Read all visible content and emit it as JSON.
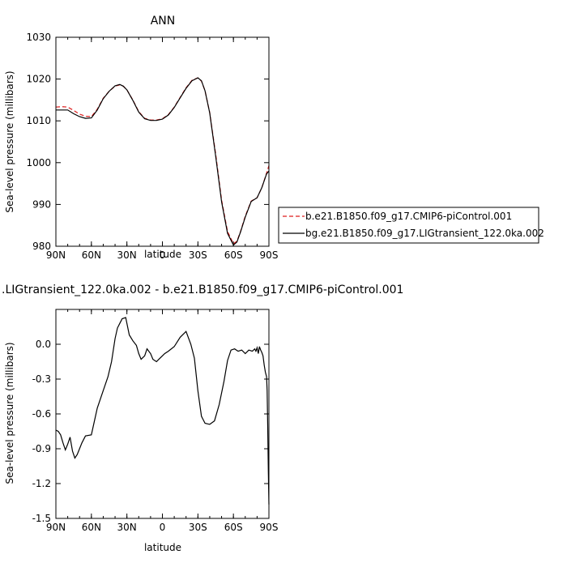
{
  "chart_data": [
    {
      "type": "line",
      "title": "ANN",
      "xlabel": "",
      "ylabel": "Sea-level pressure (millibars)",
      "xlim": [
        90,
        -90
      ],
      "ylim": [
        980,
        1030
      ],
      "x_ticks": [
        {
          "value": 90,
          "label": "90N"
        },
        {
          "value": 60,
          "label": "60N"
        },
        {
          "value": 30,
          "label": "30N"
        },
        {
          "value": 0,
          "label": "0"
        },
        {
          "value": -30,
          "label": "30S"
        },
        {
          "value": -60,
          "label": "60S"
        },
        {
          "value": -90,
          "label": "90S"
        }
      ],
      "y_ticks": [
        980,
        990,
        1000,
        1010,
        1020,
        1030
      ],
      "legend": "right",
      "series": [
        {
          "name": "b.e21.B1850.f09_g17.CMIP6-piControl.001",
          "color": "#dd1c1c",
          "dash": "dashed",
          "x": [
            90,
            85,
            80,
            75,
            70,
            65,
            60,
            55,
            50,
            45,
            40,
            36,
            33,
            30,
            25,
            20,
            15,
            10,
            5,
            0,
            -5,
            -10,
            -15,
            -20,
            -25,
            -30,
            -33,
            -36,
            -40,
            -45,
            -50,
            -55,
            -60,
            -63,
            -66,
            -70,
            -75,
            -80,
            -84,
            -88,
            -90
          ],
          "y": [
            1013.3,
            1013.4,
            1013.3,
            1012.5,
            1011.6,
            1011.1,
            1011.0,
            1012.8,
            1015.4,
            1017.1,
            1018.3,
            1018.6,
            1018.3,
            1017.4,
            1015.0,
            1012.2,
            1010.6,
            1010.2,
            1010.2,
            1010.5,
            1011.5,
            1013.3,
            1015.6,
            1017.9,
            1019.7,
            1020.3,
            1019.5,
            1017.2,
            1012.0,
            1002.0,
            991.0,
            983.5,
            980.6,
            981.2,
            983.5,
            987.2,
            990.8,
            991.6,
            994.0,
            997.5,
            999.3
          ]
        },
        {
          "name": "bg.e21.B1850.f09_g17.LIGtransient_122.0ka.002",
          "color": "#000000",
          "dash": "solid",
          "x": [
            90,
            85,
            80,
            75,
            70,
            65,
            60,
            55,
            50,
            45,
            40,
            36,
            33,
            30,
            25,
            20,
            15,
            10,
            5,
            0,
            -5,
            -10,
            -15,
            -20,
            -25,
            -30,
            -33,
            -36,
            -40,
            -45,
            -50,
            -55,
            -60,
            -63,
            -66,
            -70,
            -75,
            -80,
            -84,
            -88,
            -90
          ],
          "y": [
            1012.6,
            1012.6,
            1012.6,
            1011.7,
            1011.0,
            1010.6,
            1010.7,
            1012.6,
            1015.3,
            1017.1,
            1018.4,
            1018.7,
            1018.3,
            1017.4,
            1014.9,
            1012.1,
            1010.5,
            1010.1,
            1010.1,
            1010.4,
            1011.4,
            1013.2,
            1015.5,
            1017.8,
            1019.6,
            1020.3,
            1019.6,
            1017.2,
            1011.9,
            1001.5,
            990.6,
            983.1,
            980.3,
            981.0,
            983.4,
            987.0,
            990.7,
            991.6,
            994.0,
            997.3,
            998.0
          ]
        }
      ]
    },
    {
      "type": "line",
      "title": ".LIGtransient_122.0ka.002 - b.e21.B1850.f09_g17.CMIP6-piControl.001",
      "xlabel": "latitude",
      "ylabel": "Sea-level pressure (millibars)",
      "xlim": [
        90,
        -90
      ],
      "ylim": [
        -1.5,
        0.3
      ],
      "x_ticks": [
        {
          "value": 90,
          "label": "90N"
        },
        {
          "value": 60,
          "label": "60N"
        },
        {
          "value": 30,
          "label": "30N"
        },
        {
          "value": 0,
          "label": "0"
        },
        {
          "value": -30,
          "label": "30S"
        },
        {
          "value": -60,
          "label": "60S"
        },
        {
          "value": -90,
          "label": "90S"
        }
      ],
      "y_ticks": [
        {
          "value": -1.5,
          "label": "-1.5"
        },
        {
          "value": -1.2,
          "label": "-1.2"
        },
        {
          "value": -0.9,
          "label": "-0.9"
        },
        {
          "value": -0.6,
          "label": "-0.6"
        },
        {
          "value": -0.3,
          "label": "-0.3"
        },
        {
          "value": 0.0,
          "label": "0.0"
        }
      ],
      "series": [
        {
          "color": "#000000",
          "x": [
            90,
            88,
            86,
            84,
            82,
            80,
            78,
            76,
            74,
            72,
            70,
            68,
            65,
            60,
            55,
            50,
            46,
            43,
            40,
            38,
            36,
            35,
            34,
            31,
            28,
            25,
            22,
            20,
            18,
            15,
            13,
            10,
            8,
            5,
            3,
            0,
            -2,
            -5,
            -10,
            -15,
            -20,
            -24,
            -27,
            -30,
            -33,
            -36,
            -40,
            -44,
            -48,
            -52,
            -55,
            -58,
            -61,
            -64,
            -67,
            -70,
            -73,
            -76,
            -78,
            -79,
            -80,
            -81,
            -82,
            -83,
            -84,
            -85,
            -86,
            -87,
            -88,
            -88.5,
            -89,
            -89.5,
            -90
          ],
          "y": [
            -0.74,
            -0.75,
            -0.78,
            -0.85,
            -0.91,
            -0.86,
            -0.8,
            -0.92,
            -0.98,
            -0.95,
            -0.9,
            -0.85,
            -0.79,
            -0.78,
            -0.55,
            -0.4,
            -0.28,
            -0.15,
            0.05,
            0.14,
            0.18,
            0.2,
            0.22,
            0.23,
            0.08,
            0.03,
            -0.01,
            -0.08,
            -0.13,
            -0.1,
            -0.04,
            -0.08,
            -0.13,
            -0.15,
            -0.13,
            -0.1,
            -0.08,
            -0.06,
            -0.02,
            0.06,
            0.11,
            0.0,
            -0.12,
            -0.4,
            -0.62,
            -0.68,
            -0.69,
            -0.66,
            -0.52,
            -0.32,
            -0.14,
            -0.05,
            -0.04,
            -0.06,
            -0.05,
            -0.08,
            -0.05,
            -0.06,
            -0.04,
            -0.06,
            -0.03,
            -0.08,
            -0.02,
            -0.05,
            -0.07,
            -0.1,
            -0.18,
            -0.24,
            -0.28,
            -0.4,
            -0.7,
            -1.1,
            -1.38
          ]
        }
      ]
    }
  ]
}
